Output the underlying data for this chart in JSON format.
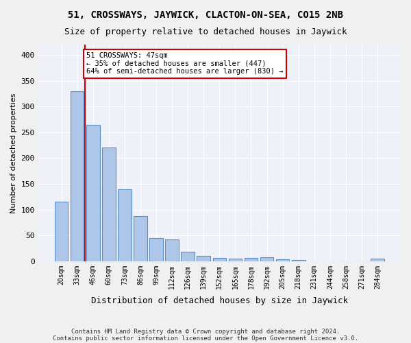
{
  "title1": "51, CROSSWAYS, JAYWICK, CLACTON-ON-SEA, CO15 2NB",
  "title2": "Size of property relative to detached houses in Jaywick",
  "xlabel": "Distribution of detached houses by size in Jaywick",
  "ylabel": "Number of detached properties",
  "categories": [
    "20sqm",
    "33sqm",
    "46sqm",
    "60sqm",
    "73sqm",
    "86sqm",
    "99sqm",
    "112sqm",
    "126sqm",
    "139sqm",
    "152sqm",
    "165sqm",
    "178sqm",
    "192sqm",
    "205sqm",
    "218sqm",
    "231sqm",
    "244sqm",
    "258sqm",
    "271sqm",
    "284sqm"
  ],
  "values": [
    115,
    330,
    265,
    220,
    140,
    88,
    45,
    42,
    18,
    10,
    6,
    5,
    7,
    8,
    4,
    3,
    0,
    0,
    0,
    0,
    5
  ],
  "bar_color": "#aec6e8",
  "bar_edge_color": "#5b8fc9",
  "vline_x": 1.5,
  "vline_color": "#cc0000",
  "annotation_text": "51 CROSSWAYS: 47sqm\n← 35% of detached houses are smaller (447)\n64% of semi-detached houses are larger (830) →",
  "annotation_box_color": "#ffffff",
  "annotation_box_edge": "#cc0000",
  "ylim": [
    0,
    420
  ],
  "yticks": [
    0,
    50,
    100,
    150,
    200,
    250,
    300,
    350,
    400
  ],
  "background_color": "#eef2f8",
  "grid_color": "#ffffff",
  "fig_bg_color": "#f0f0f0",
  "footer1": "Contains HM Land Registry data © Crown copyright and database right 2024.",
  "footer2": "Contains public sector information licensed under the Open Government Licence v3.0."
}
